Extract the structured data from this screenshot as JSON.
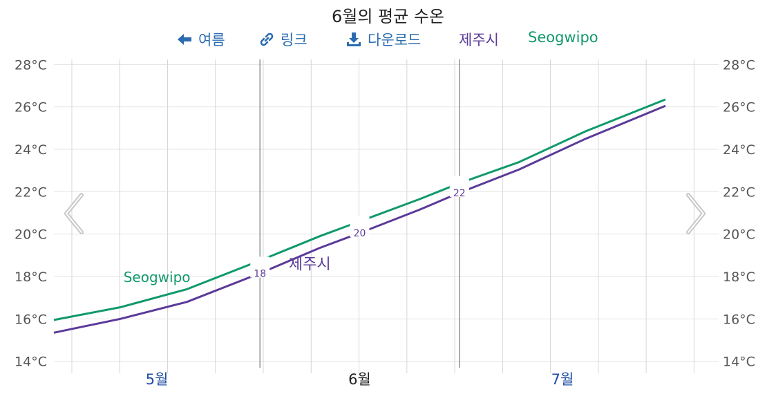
{
  "toolbar": {
    "back_label": "여름",
    "link_label": "링크",
    "download_label": "다운로드"
  },
  "colors": {
    "jeju": "#5b3a99",
    "seogwipo": "#11996b",
    "link": "#2b6cb0",
    "month_link": "#1f4fa3",
    "month_current": "#222222"
  },
  "icons": {
    "back": "arrow-left-icon",
    "link": "link-icon",
    "download": "download-icon",
    "prev": "chevron-left-icon",
    "next": "chevron-right-icon"
  },
  "chart_data": {
    "type": "line",
    "title": "6월의 평균 수온",
    "x_unit": "day",
    "x_range": [
      0,
      100
    ],
    "x_ticks": [
      {
        "label": "5월",
        "x": 15.5,
        "current": false
      },
      {
        "label": "6월",
        "x": 46,
        "current": true
      },
      {
        "label": "7월",
        "x": 76.5,
        "current": false
      }
    ],
    "month_boundaries": [
      31,
      61
    ],
    "ylim": [
      13.5,
      28.5
    ],
    "y_ticks": [
      "14°C",
      "16°C",
      "18°C",
      "20°C",
      "22°C",
      "24°C",
      "26°C",
      "28°C"
    ],
    "y_tick_values": [
      14,
      16,
      18,
      20,
      22,
      24,
      26,
      28
    ],
    "grid": true,
    "legend": "top",
    "series": [
      {
        "name": "제주시",
        "x": [
          0,
          10,
          20,
          31,
          40,
          46,
          55,
          61,
          70,
          80,
          92
        ],
        "values": [
          15.35,
          16.0,
          16.8,
          18.15,
          19.35,
          20.05,
          21.15,
          21.95,
          23.05,
          24.5,
          26.05
        ]
      },
      {
        "name": "Seogwipo",
        "x": [
          0,
          10,
          20,
          31,
          40,
          46,
          55,
          61,
          70,
          80,
          92
        ],
        "values": [
          15.95,
          16.55,
          17.4,
          18.75,
          19.9,
          20.6,
          21.65,
          22.4,
          23.4,
          24.85,
          26.35
        ]
      }
    ],
    "contour_labels": [
      {
        "text": "18",
        "x": 31
      },
      {
        "text": "20",
        "x": 46
      },
      {
        "text": "22",
        "x": 61
      }
    ],
    "inline_labels": [
      {
        "text": "Seogwipo",
        "x": 15.5,
        "y": 18.0
      },
      {
        "text": "제주시",
        "x": 38.5,
        "y": 18.5
      }
    ]
  }
}
